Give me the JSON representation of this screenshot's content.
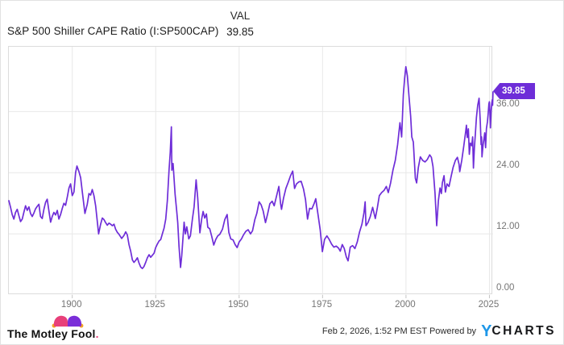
{
  "header": {
    "title": "S&P 500 Shiller CAPE Ratio (I:SP500CAP)",
    "column_label": "VAL",
    "column_value": "39.85"
  },
  "chart_data": {
    "type": "line",
    "title": "S&P 500 Shiller CAPE Ratio",
    "series_name": "I:SP500CAP",
    "x_range": [
      1881,
      2026.1
    ],
    "y_range": [
      0,
      48.7
    ],
    "x_ticks": [
      1900,
      1925,
      1950,
      1975,
      2000,
      2025
    ],
    "x_tick_labels": [
      "1900",
      "1925",
      "1950",
      "1975",
      "2000",
      "2025"
    ],
    "y_ticks": [
      0,
      12,
      24,
      36
    ],
    "y_tick_labels": [
      "0.00",
      "12.00",
      "24.00",
      "36.00"
    ],
    "grid": true,
    "legend": "none",
    "last_value": 39.85,
    "last_value_label": "39.85",
    "points": [
      [
        1881,
        18.5
      ],
      [
        1881.5,
        17.2
      ],
      [
        1882,
        15.8
      ],
      [
        1882.5,
        14.9
      ],
      [
        1883,
        16.2
      ],
      [
        1883.5,
        16.8
      ],
      [
        1884,
        15.6
      ],
      [
        1884.5,
        14.4
      ],
      [
        1885,
        14.9
      ],
      [
        1885.5,
        16.2
      ],
      [
        1886,
        17.5
      ],
      [
        1886.5,
        16.6
      ],
      [
        1887,
        17.3
      ],
      [
        1887.5,
        16.0
      ],
      [
        1888,
        15.4
      ],
      [
        1888.5,
        16.1
      ],
      [
        1889,
        16.9
      ],
      [
        1889.5,
        17.4
      ],
      [
        1890,
        17.8
      ],
      [
        1890.5,
        15.4
      ],
      [
        1891,
        15.0
      ],
      [
        1891.5,
        16.8
      ],
      [
        1892,
        18.2
      ],
      [
        1892.5,
        18.8
      ],
      [
        1893,
        16.5
      ],
      [
        1893.5,
        14.3
      ],
      [
        1894,
        15.4
      ],
      [
        1894.5,
        16.2
      ],
      [
        1895,
        15.7
      ],
      [
        1895.5,
        16.6
      ],
      [
        1896,
        14.9
      ],
      [
        1896.5,
        15.8
      ],
      [
        1897,
        17.0
      ],
      [
        1897.5,
        18.0
      ],
      [
        1898,
        17.6
      ],
      [
        1898.5,
        19.2
      ],
      [
        1899,
        21.0
      ],
      [
        1899.5,
        21.8
      ],
      [
        1900,
        19.5
      ],
      [
        1900.5,
        20.2
      ],
      [
        1901,
        24.0
      ],
      [
        1901.4,
        25.3
      ],
      [
        1902,
        24.2
      ],
      [
        1902.5,
        23.0
      ],
      [
        1903,
        20.3
      ],
      [
        1903.8,
        16.0
      ],
      [
        1904.5,
        17.8
      ],
      [
        1905,
        19.9
      ],
      [
        1905.5,
        19.6
      ],
      [
        1906,
        20.7
      ],
      [
        1906.5,
        19.5
      ],
      [
        1907,
        17.5
      ],
      [
        1907.9,
        12.0
      ],
      [
        1908.5,
        13.9
      ],
      [
        1909,
        15.1
      ],
      [
        1909.5,
        14.8
      ],
      [
        1910,
        14.2
      ],
      [
        1910.5,
        13.7
      ],
      [
        1911,
        14.1
      ],
      [
        1911.5,
        13.9
      ],
      [
        1912,
        13.6
      ],
      [
        1912.5,
        13.9
      ],
      [
        1913,
        12.9
      ],
      [
        1913.5,
        12.3
      ],
      [
        1914,
        11.9
      ],
      [
        1914.8,
        11.1
      ],
      [
        1915.5,
        11.7
      ],
      [
        1916,
        12.4
      ],
      [
        1916.5,
        11.8
      ],
      [
        1917,
        9.9
      ],
      [
        1917.5,
        8.6
      ],
      [
        1918,
        6.9
      ],
      [
        1918.5,
        6.4
      ],
      [
        1919,
        6.8
      ],
      [
        1919.5,
        7.3
      ],
      [
        1920,
        6.3
      ],
      [
        1920.5,
        5.5
      ],
      [
        1921,
        5.2
      ],
      [
        1921.5,
        5.6
      ],
      [
        1922,
        6.4
      ],
      [
        1922.5,
        7.3
      ],
      [
        1923,
        7.9
      ],
      [
        1923.5,
        7.4
      ],
      [
        1924,
        7.8
      ],
      [
        1924.5,
        8.2
      ],
      [
        1925,
        9.3
      ],
      [
        1925.5,
        10.0
      ],
      [
        1926,
        10.6
      ],
      [
        1926.5,
        10.9
      ],
      [
        1927,
        12.0
      ],
      [
        1927.5,
        13.1
      ],
      [
        1928,
        14.9
      ],
      [
        1928.5,
        18.5
      ],
      [
        1929,
        24.5
      ],
      [
        1929.35,
        28.0
      ],
      [
        1929.7,
        33.0
      ],
      [
        1929.85,
        24.5
      ],
      [
        1930.2,
        25.8
      ],
      [
        1930.8,
        19.8
      ],
      [
        1931.3,
        16.5
      ],
      [
        1931.6,
        14.2
      ],
      [
        1932,
        9.5
      ],
      [
        1932.45,
        5.4
      ],
      [
        1932.8,
        7.8
      ],
      [
        1933.1,
        10.5
      ],
      [
        1933.5,
        14.3
      ],
      [
        1933.9,
        12.0
      ],
      [
        1934.3,
        13.4
      ],
      [
        1934.9,
        11.0
      ],
      [
        1935.4,
        11.6
      ],
      [
        1936,
        14.9
      ],
      [
        1936.5,
        17.3
      ],
      [
        1937.1,
        22.6
      ],
      [
        1937.6,
        19.0
      ],
      [
        1938.25,
        12.2
      ],
      [
        1938.8,
        15.0
      ],
      [
        1939.2,
        16.4
      ],
      [
        1939.7,
        15.1
      ],
      [
        1940.2,
        15.9
      ],
      [
        1940.6,
        13.3
      ],
      [
        1941.2,
        13.0
      ],
      [
        1941.8,
        11.5
      ],
      [
        1942.4,
        9.8
      ],
      [
        1943,
        10.9
      ],
      [
        1943.6,
        11.6
      ],
      [
        1944.2,
        11.9
      ],
      [
        1945,
        12.9
      ],
      [
        1945.7,
        14.8
      ],
      [
        1946.4,
        15.8
      ],
      [
        1946.9,
        12.3
      ],
      [
        1947.5,
        11.0
      ],
      [
        1948.2,
        10.8
      ],
      [
        1948.8,
        9.9
      ],
      [
        1949.4,
        9.3
      ],
      [
        1950,
        10.4
      ],
      [
        1950.7,
        11.0
      ],
      [
        1951.3,
        11.8
      ],
      [
        1952,
        12.5
      ],
      [
        1952.7,
        12.8
      ],
      [
        1953.4,
        12.0
      ],
      [
        1954,
        12.6
      ],
      [
        1954.7,
        14.8
      ],
      [
        1955.3,
        16.0
      ],
      [
        1956,
        18.3
      ],
      [
        1956.6,
        17.7
      ],
      [
        1957.2,
        16.5
      ],
      [
        1957.9,
        14.2
      ],
      [
        1958.5,
        15.8
      ],
      [
        1959.2,
        17.9
      ],
      [
        1959.9,
        18.4
      ],
      [
        1960.5,
        17.5
      ],
      [
        1961.2,
        19.4
      ],
      [
        1961.9,
        21.3
      ],
      [
        1962.4,
        18.0
      ],
      [
        1962.7,
        16.8
      ],
      [
        1963.3,
        19.0
      ],
      [
        1964,
        20.9
      ],
      [
        1964.7,
        22.1
      ],
      [
        1965.4,
        23.4
      ],
      [
        1966.05,
        24.3
      ],
      [
        1966.6,
        20.9
      ],
      [
        1967.2,
        21.8
      ],
      [
        1967.9,
        22.2
      ],
      [
        1968.6,
        22.3
      ],
      [
        1969.3,
        20.8
      ],
      [
        1969.9,
        18.7
      ],
      [
        1970.5,
        14.9
      ],
      [
        1971.1,
        17.0
      ],
      [
        1971.8,
        16.9
      ],
      [
        1972.5,
        18.0
      ],
      [
        1972.95,
        18.9
      ],
      [
        1973.6,
        16.0
      ],
      [
        1974.3,
        12.8
      ],
      [
        1974.95,
        8.5
      ],
      [
        1975.6,
        10.9
      ],
      [
        1976.3,
        11.6
      ],
      [
        1977,
        10.9
      ],
      [
        1977.7,
        10.0
      ],
      [
        1978.4,
        9.4
      ],
      [
        1979.1,
        9.6
      ],
      [
        1979.8,
        9.2
      ],
      [
        1980.3,
        8.6
      ],
      [
        1980.9,
        9.9
      ],
      [
        1981.5,
        9.1
      ],
      [
        1982.1,
        7.5
      ],
      [
        1982.65,
        6.7
      ],
      [
        1983.3,
        9.4
      ],
      [
        1984,
        9.7
      ],
      [
        1984.7,
        9.1
      ],
      [
        1985.4,
        10.4
      ],
      [
        1986.1,
        12.4
      ],
      [
        1986.8,
        13.9
      ],
      [
        1987.4,
        16.1
      ],
      [
        1987.75,
        18.3
      ],
      [
        1988,
        13.6
      ],
      [
        1988.6,
        14.2
      ],
      [
        1989.3,
        15.4
      ],
      [
        1990,
        17.2
      ],
      [
        1990.8,
        15.0
      ],
      [
        1991.4,
        17.1
      ],
      [
        1992,
        19.5
      ],
      [
        1992.7,
        20.1
      ],
      [
        1993.4,
        20.5
      ],
      [
        1994.1,
        21.3
      ],
      [
        1994.7,
        20.1
      ],
      [
        1995.4,
        22.0
      ],
      [
        1996.1,
        24.5
      ],
      [
        1996.8,
        26.4
      ],
      [
        1997.5,
        29.5
      ],
      [
        1998.2,
        33.8
      ],
      [
        1998.7,
        31.0
      ],
      [
        1999.2,
        39.3
      ],
      [
        1999.6,
        42.5
      ],
      [
        1999.95,
        44.8
      ],
      [
        2000.4,
        43.0
      ],
      [
        2000.9,
        39.0
      ],
      [
        2001.4,
        35.0
      ],
      [
        2001.75,
        31.0
      ],
      [
        2002.2,
        30.0
      ],
      [
        2002.8,
        22.9
      ],
      [
        2003.2,
        22.0
      ],
      [
        2003.7,
        25.0
      ],
      [
        2004.3,
        27.1
      ],
      [
        2005,
        26.4
      ],
      [
        2005.7,
        26.1
      ],
      [
        2006.4,
        26.6
      ],
      [
        2007.1,
        27.5
      ],
      [
        2007.6,
        27.0
      ],
      [
        2008.1,
        25.2
      ],
      [
        2008.7,
        20.0
      ],
      [
        2009.2,
        13.6
      ],
      [
        2009.7,
        18.5
      ],
      [
        2010.2,
        21.0
      ],
      [
        2010.6,
        19.9
      ],
      [
        2010.9,
        22.0
      ],
      [
        2011.4,
        23.4
      ],
      [
        2011.8,
        20.2
      ],
      [
        2012.3,
        21.8
      ],
      [
        2012.9,
        21.3
      ],
      [
        2013.5,
        23.2
      ],
      [
        2014.1,
        25.0
      ],
      [
        2014.8,
        26.4
      ],
      [
        2015.4,
        27.0
      ],
      [
        2015.9,
        25.6
      ],
      [
        2016.1,
        24.2
      ],
      [
        2016.7,
        26.4
      ],
      [
        2017.3,
        29.2
      ],
      [
        2017.9,
        32.1
      ],
      [
        2018.1,
        33.3
      ],
      [
        2018.35,
        30.9
      ],
      [
        2018.7,
        32.6
      ],
      [
        2018.97,
        27.6
      ],
      [
        2019.3,
        29.8
      ],
      [
        2019.7,
        29.3
      ],
      [
        2019.97,
        31.0
      ],
      [
        2020.2,
        24.9
      ],
      [
        2020.5,
        28.9
      ],
      [
        2020.8,
        31.6
      ],
      [
        2021.1,
        34.8
      ],
      [
        2021.5,
        37.2
      ],
      [
        2021.9,
        38.6
      ],
      [
        2022.25,
        34.0
      ],
      [
        2022.5,
        29.5
      ],
      [
        2022.65,
        31.0
      ],
      [
        2022.78,
        27.1
      ],
      [
        2023.1,
        29.5
      ],
      [
        2023.4,
        30.8
      ],
      [
        2023.6,
        31.8
      ],
      [
        2023.85,
        28.9
      ],
      [
        2024.1,
        32.6
      ],
      [
        2024.4,
        34.0
      ],
      [
        2024.6,
        35.4
      ],
      [
        2024.85,
        37.5
      ],
      [
        2025,
        37.9
      ],
      [
        2025.15,
        35.5
      ],
      [
        2025.3,
        32.8
      ],
      [
        2025.5,
        35.9
      ],
      [
        2025.7,
        37.6
      ],
      [
        2025.85,
        38.3
      ],
      [
        2025.95,
        37.2
      ],
      [
        2026.08,
        39.85
      ]
    ]
  },
  "footer": {
    "motley_fool_text": "The Motley Fool",
    "motley_fool_period": ".",
    "timestamp": "Feb 2, 2026, 1:52 PM EST Powered by",
    "ycharts_y": "Y",
    "ycharts_rest": "CHARTS"
  },
  "colors": {
    "line": "#6e2dd8",
    "tag_bg": "#6e2dd8",
    "grid": "#e8e8e8",
    "plot_border": "#dcdcdc",
    "tick": "#c4c4c4",
    "axis_label": "#757575",
    "ycharts_blue": "#1e97e8",
    "mf_pink": "#e8407a",
    "mf_purple": "#7a2ed8",
    "mf_gold": "#f4a322"
  }
}
